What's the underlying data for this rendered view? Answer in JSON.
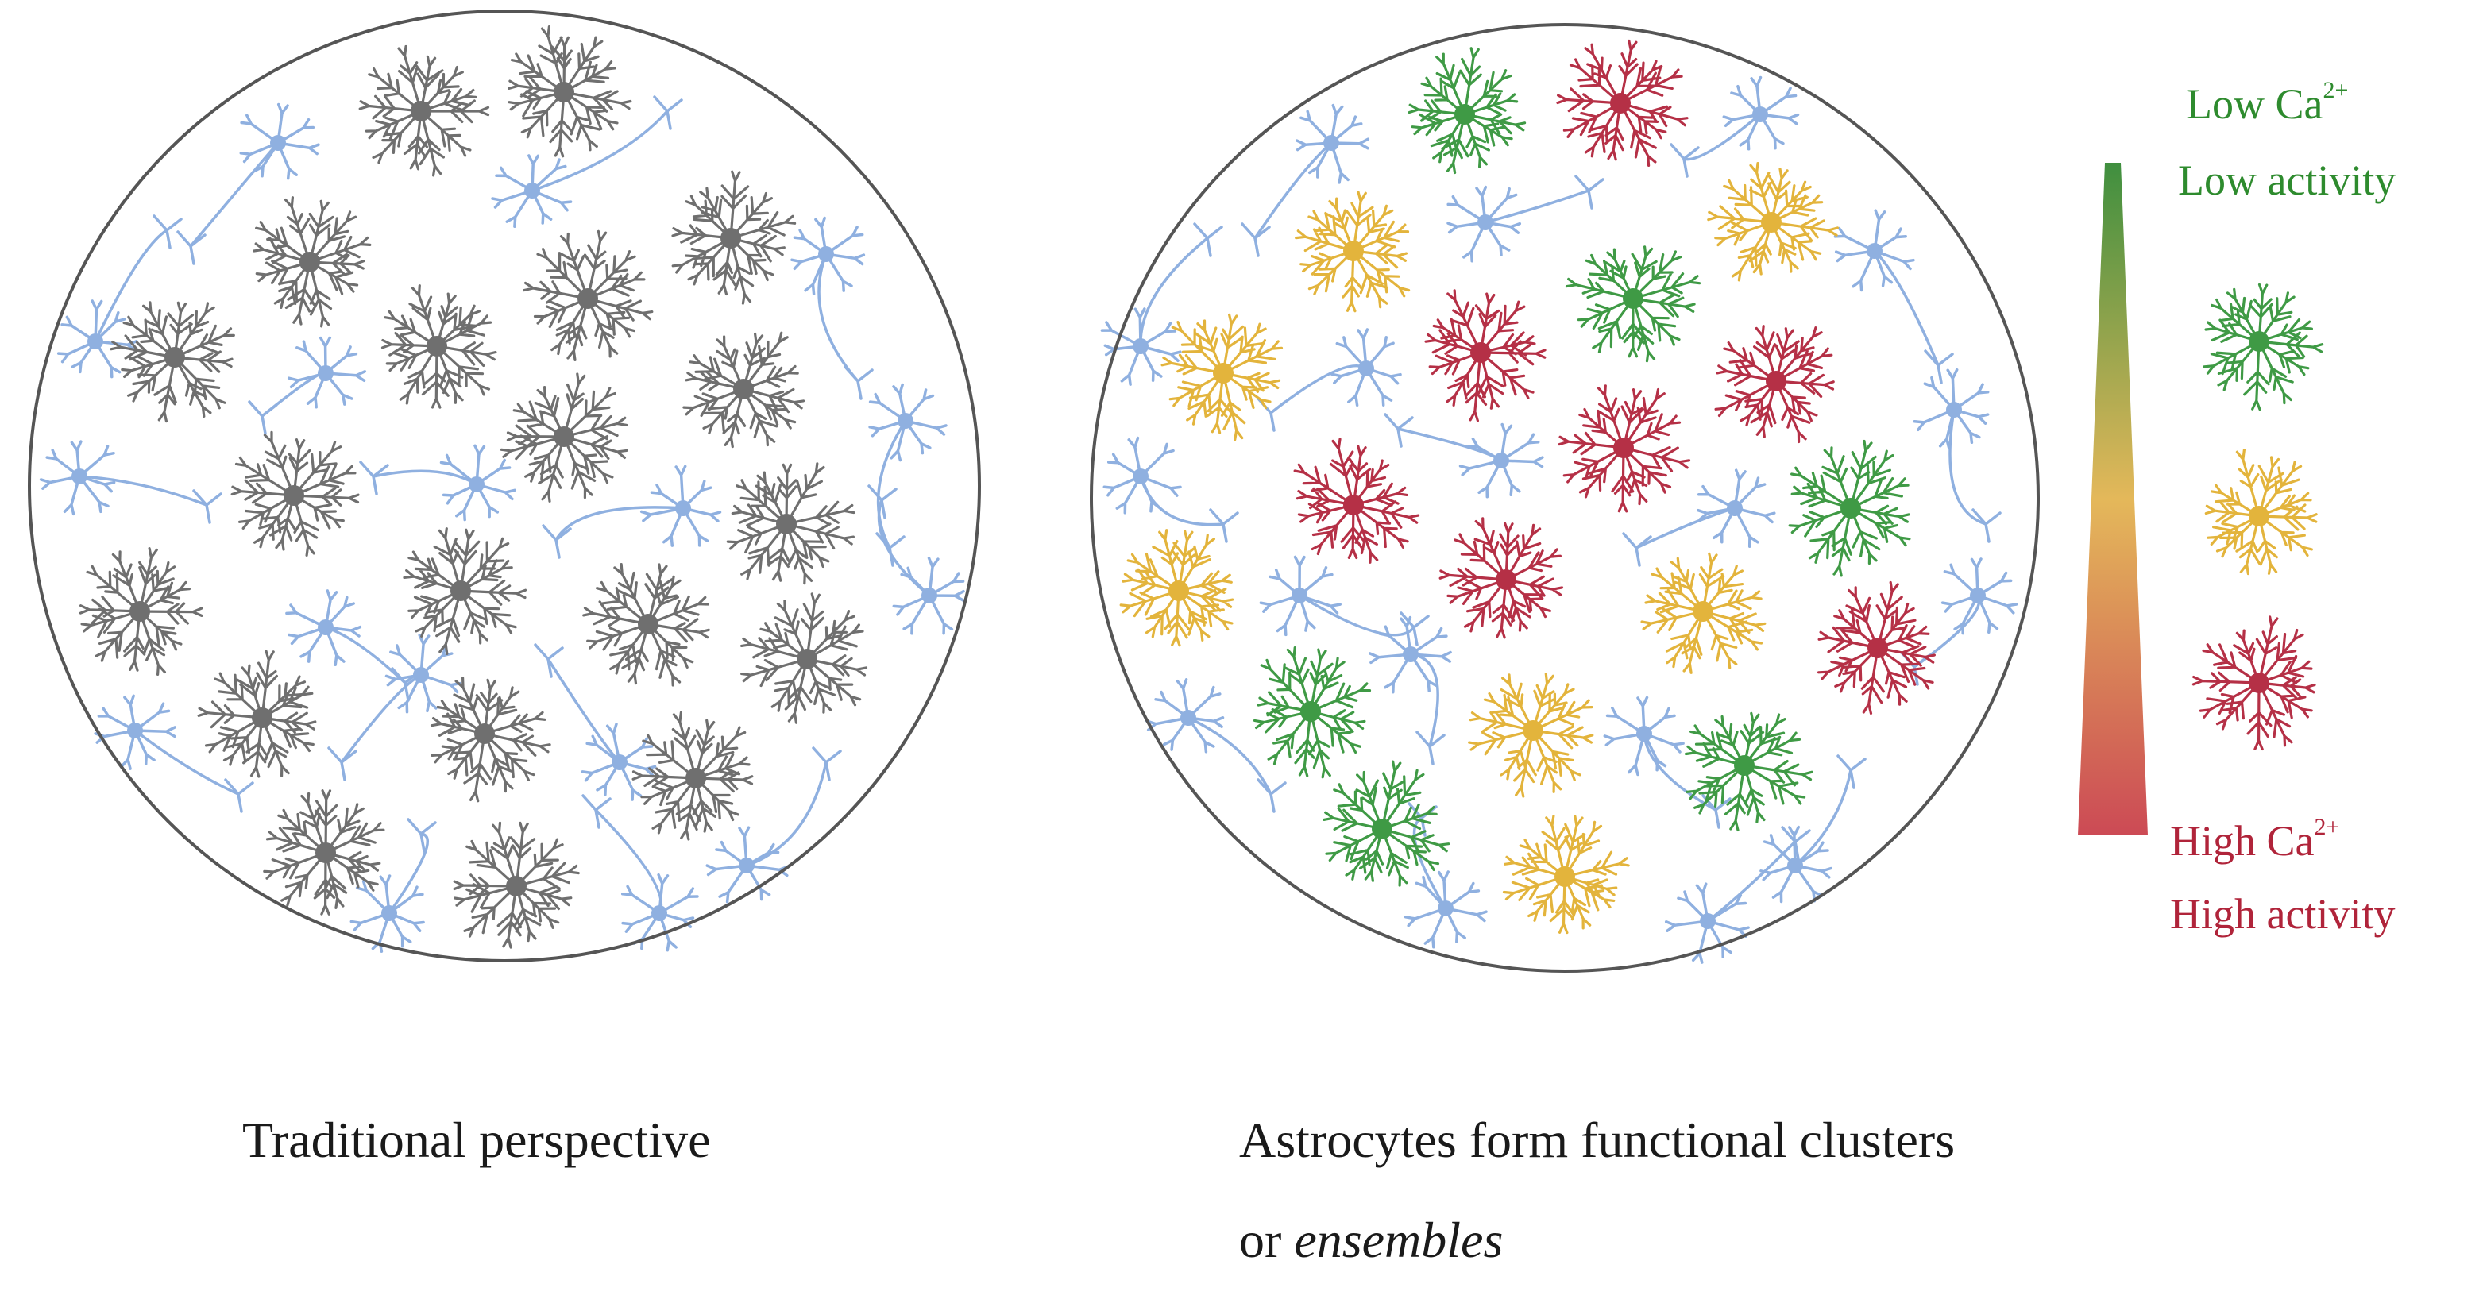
{
  "captions": {
    "left": "Traditional perspective",
    "right_line1": "Astrocytes form functional clusters",
    "right_line2_prefix": "or ",
    "right_line2_italic": "ensembles"
  },
  "legend": {
    "low_ca_prefix": "Low Ca",
    "low_ca_sup": "2+",
    "low_activity": "Low activity",
    "high_ca_prefix": "High Ca",
    "high_ca_sup": "2+",
    "high_activity": "High activity"
  },
  "colors": {
    "neuron": "#8fb0e0",
    "astro_gray": "#6f6f6f",
    "astro_green": "#3f9a45",
    "astro_yellow": "#e3b43c",
    "astro_red": "#b53046",
    "circle_stroke": "#555555",
    "gradient_top": "#3f8f3f",
    "gradient_mid": "#e4b85a",
    "gradient_bottom": "#cc4a55"
  }
}
